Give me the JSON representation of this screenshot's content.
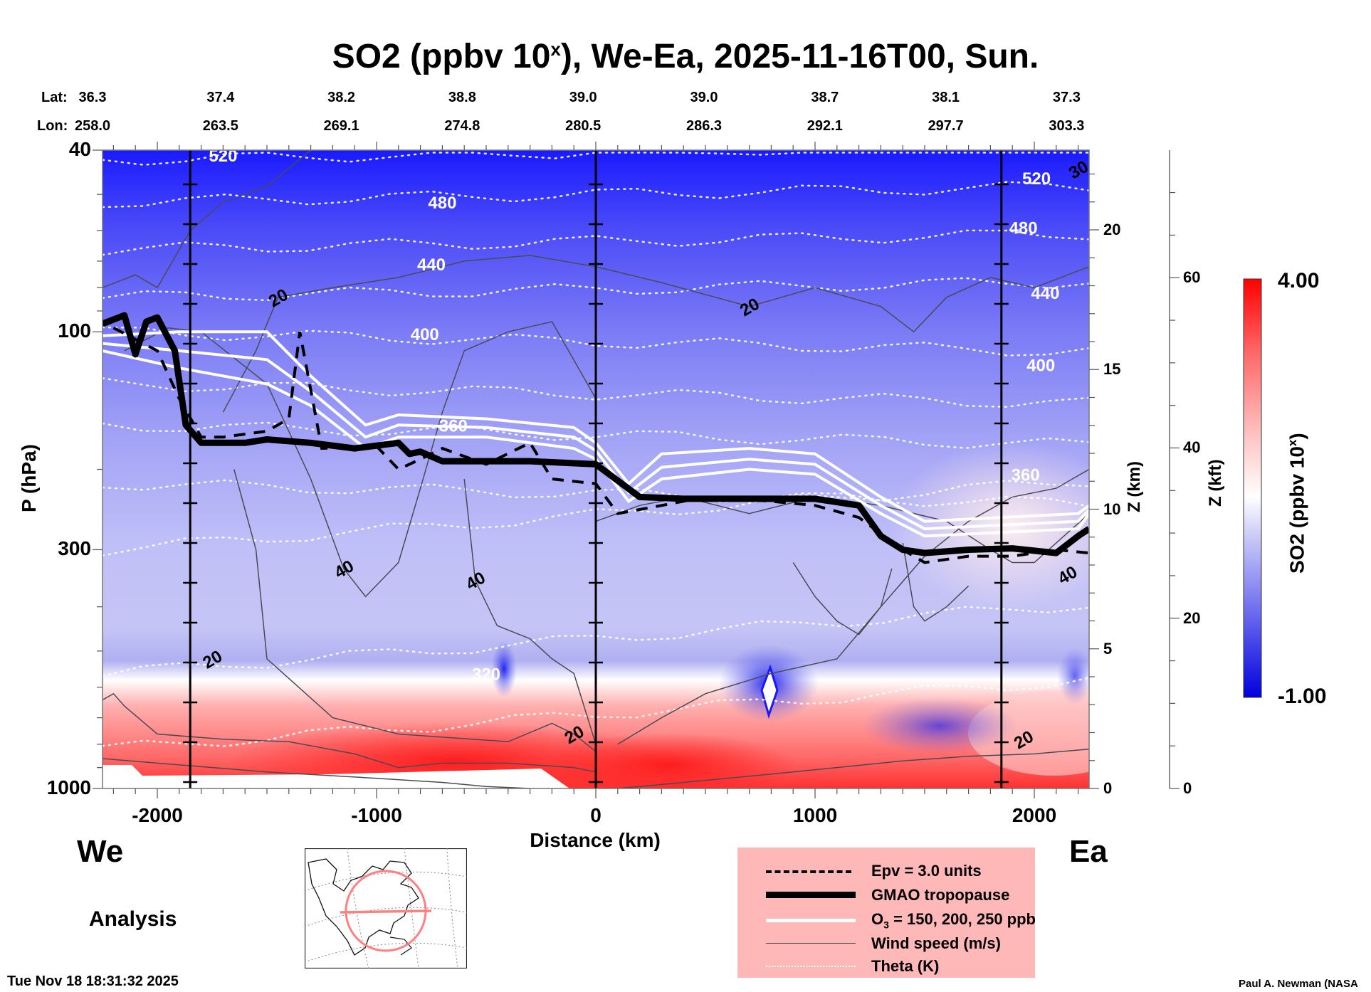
{
  "title": {
    "prefix": "SO2 (ppbv 10",
    "superscript": "x",
    "suffix": "), We-Ea, 2025-11-16T00, Sun."
  },
  "coords": {
    "lat_label": "Lat:",
    "lon_label": "Lon:",
    "lat": [
      "36.3",
      "37.4",
      "38.2",
      "38.8",
      "39.0",
      "39.0",
      "38.7",
      "38.1",
      "37.3"
    ],
    "lon": [
      "258.0",
      "263.5",
      "269.1",
      "274.8",
      "280.5",
      "286.3",
      "292.1",
      "297.7",
      "303.3"
    ]
  },
  "direction": {
    "west": "We",
    "east": "Ea"
  },
  "product_label": "Analysis",
  "timestamp": "Tue Nov 18 18:31:32 2025",
  "credit": "Paul A. Newman (NASA",
  "legend": {
    "items": [
      {
        "label": "Epv = 3.0 units",
        "style": "dashed-black"
      },
      {
        "label": "GMAO tropopause",
        "style": "thick-black"
      },
      {
        "label_main": "O",
        "label_sub": "3",
        "label_rest": " = 150, 200, 250 ppb",
        "style": "white"
      },
      {
        "label": "Wind speed (m/s)",
        "style": "thin-gray"
      },
      {
        "label": "Theta (K)",
        "style": "dotted-white"
      }
    ]
  },
  "colorbar": {
    "title_prefix": "SO2 (ppbv 10",
    "title_sup": "x",
    "title_suffix": ")",
    "max_label": "4.00",
    "min_label": "-1.00",
    "colors": {
      "low": "#0000ee",
      "mid": "#ffffff",
      "high": "#ff0000"
    }
  },
  "chart_data": {
    "type": "heatmap",
    "title": "SO2 (ppbv 10^x), We-Ea, 2025-11-16T00, Sun.",
    "xlabel": "Distance (km)",
    "ylabel": "P (hPa)",
    "xlim": [
      -2250,
      2250
    ],
    "ylim": [
      1000,
      40
    ],
    "yscale": "log",
    "x_ticks": [
      "-2000",
      "-1000",
      "0",
      "1000",
      "2000"
    ],
    "x_tick_values": [
      -2000,
      -1000,
      0,
      1000,
      2000
    ],
    "y_ticks": [
      "40",
      "100",
      "300",
      "1000"
    ],
    "y_tick_values": [
      40,
      100,
      300,
      1000
    ],
    "z_km_label": "Z (km)",
    "z_km_ticks": [
      "0",
      "5",
      "10",
      "15",
      "20"
    ],
    "z_kft_label": "Z (kft)",
    "z_kft_ticks": [
      "0",
      "20",
      "40",
      "60"
    ],
    "colorbar_range": [
      -1.0,
      4.0
    ],
    "vertical_markers_km": [
      -1850,
      0,
      1850
    ],
    "theta_labels": [
      {
        "value": "520",
        "x": -1700,
        "p": 41
      },
      {
        "value": "480",
        "x": -700,
        "p": 52
      },
      {
        "value": "440",
        "x": -750,
        "p": 71
      },
      {
        "value": "400",
        "x": -780,
        "p": 101
      },
      {
        "value": "360",
        "x": -650,
        "p": 160
      },
      {
        "value": "320",
        "x": -500,
        "p": 560
      },
      {
        "value": "520",
        "x": 2010,
        "p": 46
      },
      {
        "value": "480",
        "x": 1950,
        "p": 59
      },
      {
        "value": "440",
        "x": 2050,
        "p": 82
      },
      {
        "value": "400",
        "x": 2030,
        "p": 118
      },
      {
        "value": "360",
        "x": 1960,
        "p": 205
      }
    ],
    "theta_levels_p_at_left": [
      42,
      52,
      66,
      84,
      100,
      130,
      160,
      215,
      300,
      560,
      820
    ],
    "wind_labels": [
      {
        "value": "20",
        "x": -1450,
        "p": 84
      },
      {
        "value": "20",
        "x": 700,
        "p": 88
      },
      {
        "value": "40",
        "x": -1150,
        "p": 330
      },
      {
        "value": "40",
        "x": -550,
        "p": 350
      },
      {
        "value": "20",
        "x": -1750,
        "p": 520
      },
      {
        "value": "20",
        "x": -100,
        "p": 760
      },
      {
        "value": "20",
        "x": 1950,
        "p": 780
      },
      {
        "value": "40",
        "x": 2150,
        "p": 340
      },
      {
        "value": "30",
        "x": 2200,
        "p": 44
      }
    ],
    "tropopause": {
      "x": [
        -2250,
        -2150,
        -2100,
        -2050,
        -2000,
        -1920,
        -1870,
        -1800,
        -1600,
        -1500,
        -1300,
        -1100,
        -900,
        -850,
        -800,
        -700,
        -500,
        -300,
        0,
        200,
        400,
        700,
        1000,
        1200,
        1300,
        1400,
        1500,
        1700,
        1900,
        2100,
        2200,
        2250
      ],
      "p": [
        96,
        92,
        112,
        95,
        93,
        110,
        160,
        175,
        175,
        172,
        175,
        180,
        175,
        185,
        183,
        192,
        192,
        192,
        195,
        230,
        232,
        232,
        232,
        240,
        280,
        300,
        305,
        300,
        298,
        305,
        280,
        270
      ]
    },
    "epv_contour": {
      "x": [
        -2200,
        -2000,
        -1900,
        -1800,
        -1700,
        -1500,
        -1400,
        -1350,
        -1250,
        -1000,
        -900,
        -800,
        -700,
        -500,
        -300,
        -200,
        0,
        100,
        300,
        500,
        800,
        1000,
        1200,
        1400,
        1500,
        1700,
        1900,
        2100,
        2250
      ],
      "p": [
        98,
        110,
        140,
        170,
        170,
        165,
        155,
        100,
        180,
        178,
        200,
        190,
        180,
        195,
        175,
        210,
        215,
        250,
        240,
        230,
        235,
        240,
        255,
        300,
        320,
        310,
        310,
        300,
        305
      ]
    },
    "ozone_contours": [
      {
        "label": "150 ppb",
        "x": [
          -2250,
          -1900,
          -1500,
          -1300,
          -1050,
          -900,
          -500,
          -100,
          0,
          150,
          300,
          700,
          1000,
          1300,
          1500,
          2200,
          2250
        ],
        "p": [
          102,
          100,
          100,
          125,
          160,
          152,
          155,
          162,
          175,
          215,
          185,
          180,
          185,
          230,
          260,
          250,
          240
        ]
      },
      {
        "label": "200 ppb",
        "x": [
          -2250,
          -1900,
          -1500,
          -1300,
          -1050,
          -900,
          -500,
          -100,
          0,
          150,
          300,
          700,
          1000,
          1300,
          1500,
          2200,
          2250
        ],
        "p": [
          106,
          110,
          115,
          135,
          170,
          160,
          162,
          170,
          182,
          225,
          198,
          190,
          195,
          240,
          270,
          260,
          245
        ]
      },
      {
        "label": "250 ppb",
        "x": [
          -2250,
          -1900,
          -1500,
          -1300,
          -1050,
          -900,
          -500,
          -100,
          0,
          150,
          300,
          700,
          1000,
          1300,
          1500,
          2200,
          2250
        ],
        "p": [
          110,
          120,
          130,
          145,
          180,
          170,
          170,
          180,
          190,
          235,
          210,
          200,
          205,
          250,
          280,
          270,
          250
        ]
      }
    ],
    "so2_field_description": "Upper troposphere/stratosphere blue (negative log values, down to about -1 near 40 hPa); near-surface layer below ~700 hPa red (up to ~4), strongest around -1000 to +600 km near 900-1000 hPa; localized blue minima near x=-400 and x=+800 km around 600-700 hPa; white/pinkish region near 250-400 hPa east of +1500 km."
  }
}
